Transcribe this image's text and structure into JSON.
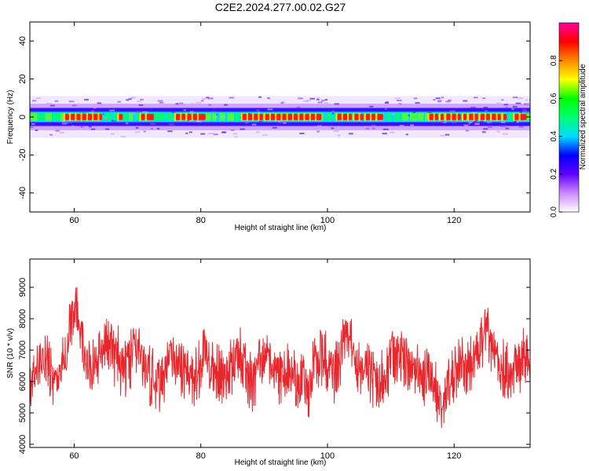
{
  "title": "C2E2.2024.277.00.02.G27",
  "colors": {
    "snr_line": "#e8262c",
    "axes": "#000000",
    "background": "#ffffff"
  },
  "chart_data": [
    {
      "type": "heatmap",
      "title": "C2E2.2024.277.00.02.G27",
      "xlabel": "Height of straight line (km)",
      "ylabel": "Frequency (Hz)",
      "xlim": [
        53,
        132
      ],
      "ylim": [
        -50,
        50
      ],
      "x_ticks": [
        60,
        80,
        100,
        120
      ],
      "x_tick_labels": [
        "60",
        "80",
        "100",
        "120"
      ],
      "y_ticks": [
        -40,
        -20,
        0,
        20,
        40
      ],
      "y_tick_labels": [
        "-40",
        "-20",
        "0",
        "20",
        "40"
      ],
      "band_center_hz": 0,
      "band_halfwidth_hz": 5,
      "core_high_intervals": [
        [
          58.5,
          64.5
        ],
        [
          67,
          67.5
        ],
        [
          70.5,
          72
        ],
        [
          76,
          80
        ],
        [
          86.5,
          99
        ],
        [
          101.5,
          108
        ],
        [
          116,
          128
        ],
        [
          129.5,
          130.5
        ]
      ],
      "colorbar": {
        "label": "Normalized spectral amplitude",
        "range": [
          0,
          1
        ],
        "ticks": [
          0.0,
          0.2,
          0.4,
          0.6,
          0.8
        ],
        "tick_labels": [
          "0.0",
          "0.2",
          "0.4",
          "0.6",
          "0.8"
        ],
        "colors": [
          "#ffffff",
          "#cc88ff",
          "#6000ff",
          "#0000ff",
          "#00ddff",
          "#00ff70",
          "#00ff00",
          "#ffff00",
          "#ff8800",
          "#ff0000",
          "#ff00a0"
        ]
      },
      "grid": false
    },
    {
      "type": "line",
      "xlabel": "Height of straight line (km)",
      "ylabel": "SNR (10 * v/v)",
      "xlim": [
        53,
        132
      ],
      "ylim": [
        3900,
        9900
      ],
      "x_ticks": [
        60,
        80,
        100,
        120
      ],
      "x_tick_labels": [
        "60",
        "80",
        "100",
        "120"
      ],
      "y_ticks": [
        4000,
        5000,
        6000,
        7000,
        8000,
        9000
      ],
      "y_tick_labels": [
        "4000",
        "5000",
        "6000",
        "7000",
        "8000",
        "9000"
      ],
      "series": [
        {
          "color": "#e8262c",
          "x": [
            53,
            54,
            55,
            56,
            57,
            58,
            59,
            59.5,
            60,
            60.5,
            61,
            62,
            63,
            64,
            65,
            66,
            67,
            68,
            69,
            70,
            71,
            72,
            73,
            74,
            75,
            76,
            77,
            78,
            79,
            80,
            81,
            82,
            83,
            84,
            85,
            86,
            87,
            88,
            89,
            90,
            91,
            92,
            93,
            94,
            95,
            96,
            97,
            98,
            99,
            100,
            101,
            102,
            103,
            104,
            105,
            106,
            107,
            108,
            109,
            110,
            111,
            112,
            113,
            114,
            115,
            116,
            117,
            118,
            119,
            120,
            121,
            122,
            123,
            124,
            125,
            126,
            127,
            128,
            129,
            130,
            131,
            132
          ],
          "y": [
            5900,
            6600,
            6700,
            6300,
            6000,
            6800,
            7100,
            7900,
            8300,
            8000,
            7500,
            6600,
            6400,
            6700,
            7300,
            7000,
            6700,
            6300,
            6900,
            7200,
            6500,
            6200,
            6000,
            6100,
            6800,
            6600,
            6400,
            6300,
            6000,
            6700,
            6900,
            6500,
            6100,
            6400,
            6600,
            6800,
            6400,
            6000,
            6500,
            6900,
            6600,
            6300,
            6100,
            6400,
            6000,
            6200,
            5700,
            6600,
            6900,
            6500,
            6000,
            6700,
            7600,
            6800,
            6300,
            6500,
            6100,
            5800,
            6300,
            6600,
            6900,
            6800,
            6500,
            6300,
            6000,
            6400,
            5700,
            5300,
            6000,
            6400,
            6700,
            6300,
            6800,
            7200,
            7700,
            7000,
            6600,
            6300,
            6000,
            6500,
            6800,
            6200
          ]
        }
      ],
      "grid": false
    }
  ]
}
